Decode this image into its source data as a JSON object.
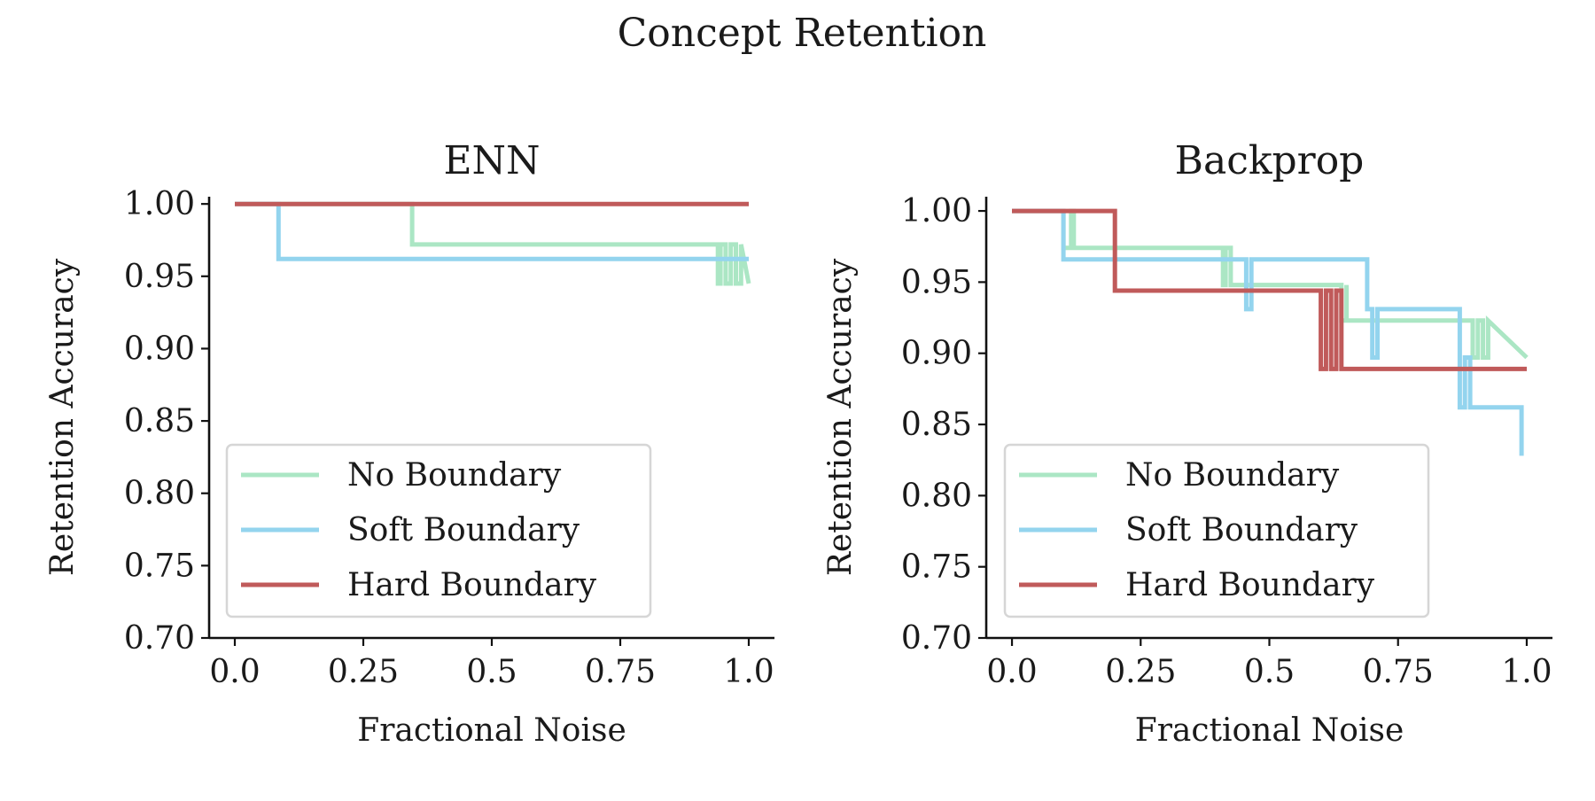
{
  "figure": {
    "title": "Concept Retention"
  },
  "chart_data": [
    {
      "type": "line",
      "step": true,
      "title": "ENN",
      "xlabel": "Fractional Noise",
      "ylabel": "Retention Accuracy",
      "xlim": [
        -0.05,
        1.05
      ],
      "ylim": [
        0.7,
        1.005
      ],
      "xticks": [
        0,
        0.25,
        0.5,
        0.75,
        1.0
      ],
      "xtick_labels": [
        "0.0",
        "0.25",
        "0.5",
        "0.75",
        "1.0"
      ],
      "yticks": [
        0.7,
        0.75,
        0.8,
        0.85,
        0.9,
        0.95,
        1.0
      ],
      "ytick_labels": [
        "0.70",
        "0.75",
        "0.80",
        "0.85",
        "0.90",
        "0.95",
        "1.00"
      ],
      "legend_position": "lower-left",
      "series": [
        {
          "name": "No Boundary",
          "color": "#abe6c4",
          "x": [
            0,
            0.345,
            0.345,
            0.94,
            0.94,
            0.945,
            0.945,
            0.955,
            0.955,
            0.965,
            0.965,
            0.975,
            0.975,
            0.985,
            0.985,
            1.0
          ],
          "y": [
            1.0,
            1.0,
            0.972,
            0.972,
            0.945,
            0.945,
            0.972,
            0.972,
            0.945,
            0.945,
            0.972,
            0.972,
            0.945,
            0.945,
            0.972,
            0.945
          ]
        },
        {
          "name": "Soft Boundary",
          "color": "#93d4ee",
          "x": [
            0,
            0.085,
            0.085,
            1.0
          ],
          "y": [
            1.0,
            1.0,
            0.962,
            0.962
          ]
        },
        {
          "name": "Hard Boundary",
          "color": "#c05a5a",
          "x": [
            0,
            1.0
          ],
          "y": [
            1.0,
            1.0
          ]
        }
      ]
    },
    {
      "type": "line",
      "step": true,
      "title": "Backprop",
      "xlabel": "Fractional Noise",
      "ylabel": "Retention Accuracy",
      "xlim": [
        -0.05,
        1.05
      ],
      "ylim": [
        0.7,
        1.01
      ],
      "xticks": [
        0,
        0.25,
        0.5,
        0.75,
        1.0
      ],
      "xtick_labels": [
        "0.0",
        "0.25",
        "0.5",
        "0.75",
        "1.0"
      ],
      "yticks": [
        0.7,
        0.75,
        0.8,
        0.85,
        0.9,
        0.95,
        1.0
      ],
      "ytick_labels": [
        "0.70",
        "0.75",
        "0.80",
        "0.85",
        "0.90",
        "0.95",
        "1.00"
      ],
      "legend_position": "lower-left",
      "series": [
        {
          "name": "No Boundary",
          "color": "#abe6c4",
          "x": [
            0,
            0.1,
            0.1,
            0.115,
            0.115,
            0.12,
            0.12,
            0.125,
            0.125,
            0.41,
            0.41,
            0.415,
            0.415,
            0.425,
            0.425,
            0.64,
            0.64,
            0.65,
            0.65,
            0.65,
            0.65,
            0.895,
            0.895,
            0.905,
            0.905,
            0.915,
            0.915,
            0.925,
            0.925,
            1.0
          ],
          "y": [
            1.0,
            1.0,
            0.974,
            0.974,
            1.0,
            1.0,
            0.974,
            0.974,
            0.974,
            0.974,
            0.948,
            0.948,
            0.974,
            0.974,
            0.948,
            0.948,
            0.923,
            0.923,
            0.948,
            0.948,
            0.923,
            0.923,
            0.897,
            0.897,
            0.923,
            0.923,
            0.897,
            0.897,
            0.923,
            0.897
          ]
        },
        {
          "name": "Soft Boundary",
          "color": "#93d4ee",
          "x": [
            0,
            0.1,
            0.1,
            0.455,
            0.455,
            0.465,
            0.465,
            0.69,
            0.69,
            0.7,
            0.7,
            0.71,
            0.71,
            0.87,
            0.87,
            0.88,
            0.88,
            0.89,
            0.89,
            0.99,
            0.99
          ],
          "y": [
            1.0,
            1.0,
            0.966,
            0.966,
            0.931,
            0.931,
            0.966,
            0.966,
            0.931,
            0.931,
            0.897,
            0.897,
            0.931,
            0.931,
            0.862,
            0.862,
            0.897,
            0.897,
            0.862,
            0.862,
            0.828
          ]
        },
        {
          "name": "Hard Boundary",
          "color": "#c05a5a",
          "x": [
            0,
            0.2,
            0.2,
            0.6,
            0.6,
            0.61,
            0.61,
            0.62,
            0.62,
            0.63,
            0.63,
            0.64,
            0.64,
            0.65,
            0.65,
            1.0
          ],
          "y": [
            1.0,
            1.0,
            0.944,
            0.944,
            0.889,
            0.889,
            0.944,
            0.944,
            0.889,
            0.889,
            0.944,
            0.944,
            0.889,
            0.889,
            0.889,
            0.889
          ]
        }
      ]
    }
  ]
}
